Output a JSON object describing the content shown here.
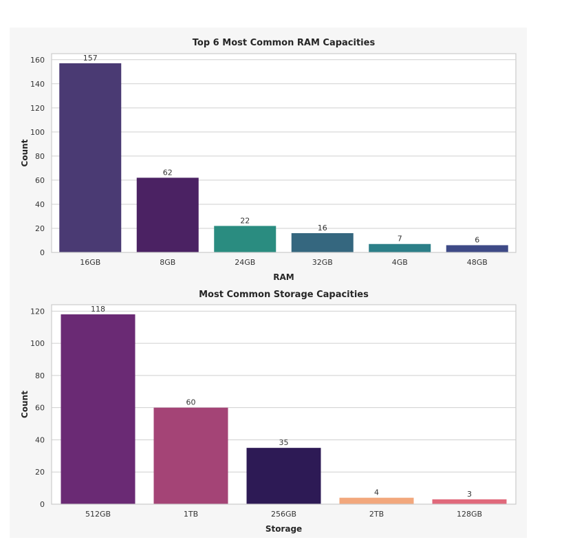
{
  "chart_data": [
    {
      "type": "bar",
      "title": "Top 6 Most Common RAM Capacities",
      "xlabel": "RAM",
      "ylabel": "Count",
      "categories": [
        "16GB",
        "8GB",
        "24GB",
        "32GB",
        "4GB",
        "48GB"
      ],
      "values": [
        157,
        62,
        22,
        16,
        7,
        6
      ],
      "colors": [
        "#4a3a73",
        "#4b2263",
        "#2a8c80",
        "#35677f",
        "#2c7f88",
        "#3e4a86"
      ],
      "ylim": [
        0,
        165
      ],
      "yticks": [
        0,
        20,
        40,
        60,
        80,
        100,
        120,
        140,
        160
      ],
      "grid": true
    },
    {
      "type": "bar",
      "title": "Most Common Storage Capacities",
      "xlabel": "Storage",
      "ylabel": "Count",
      "categories": [
        "512GB",
        "1TB",
        "256GB",
        "2TB",
        "128GB"
      ],
      "values": [
        118,
        60,
        35,
        4,
        3
      ],
      "colors": [
        "#6a2a74",
        "#a44476",
        "#2d1a55",
        "#f2a77c",
        "#e0697b"
      ],
      "ylim": [
        0,
        124
      ],
      "yticks": [
        0,
        20,
        40,
        60,
        80,
        100,
        120
      ],
      "grid": true
    }
  ]
}
